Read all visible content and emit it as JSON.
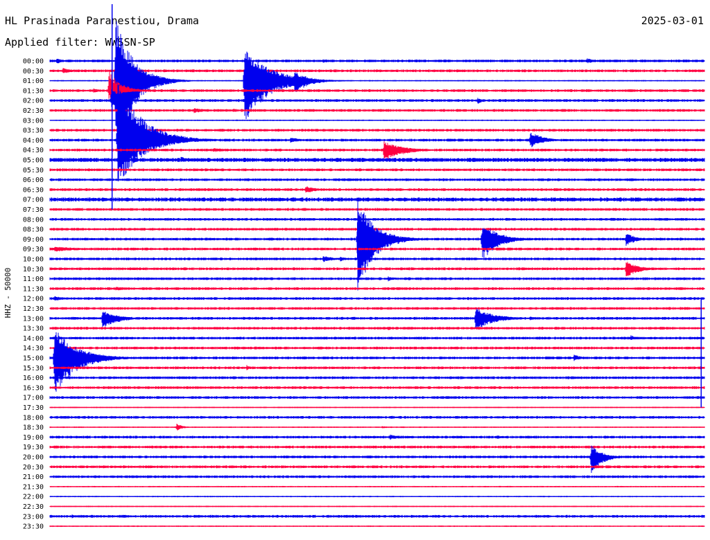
{
  "header": {
    "station": "HL Prasinada Paranestiou, Drama",
    "date": "2025-03-01",
    "filter": "Applied filter: WWSSN-SP"
  },
  "chart_data": {
    "type": "line",
    "ylabel": "HHZ - 50000",
    "row_labels": [
      "00:00",
      "00:30",
      "01:00",
      "01:30",
      "02:00",
      "02:30",
      "03:00",
      "03:30",
      "04:00",
      "04:30",
      "05:00",
      "05:30",
      "06:00",
      "06:30",
      "07:00",
      "07:30",
      "08:00",
      "08:30",
      "09:00",
      "09:30",
      "10:00",
      "10:30",
      "11:00",
      "11:30",
      "12:00",
      "12:30",
      "13:00",
      "13:30",
      "14:00",
      "14:30",
      "15:00",
      "15:30",
      "16:00",
      "16:30",
      "17:00",
      "17:30",
      "18:00",
      "18:30",
      "19:00",
      "19:30",
      "20:00",
      "20:30",
      "21:00",
      "21:30",
      "22:00",
      "22:30",
      "23:00",
      "23:30"
    ],
    "x_range_minutes": [
      0,
      30
    ],
    "trace_colors": [
      "#0000ee",
      "#ff0040"
    ],
    "noise_levels": [
      2,
      2,
      1,
      2,
      2,
      2,
      1,
      2,
      2,
      2,
      3,
      2,
      2,
      2,
      3,
      2,
      2,
      2,
      2,
      2,
      2,
      2,
      2,
      2,
      2,
      2,
      2,
      2,
      2,
      2,
      2,
      2,
      2,
      2,
      2,
      1,
      2,
      1,
      2,
      2,
      2,
      2,
      2,
      1,
      1,
      1,
      2,
      1
    ],
    "events": [
      {
        "row": 0,
        "minute": 0.3,
        "up": 5,
        "down": 5,
        "coda": 0.5
      },
      {
        "row": 0,
        "minute": 12.5,
        "up": 3,
        "down": 3,
        "coda": 0.6
      },
      {
        "row": 0,
        "minute": 24.6,
        "up": 4,
        "down": 4,
        "coda": 0.7
      },
      {
        "row": 1,
        "minute": 0.6,
        "up": 4,
        "down": 4,
        "coda": 1.0
      },
      {
        "row": 1,
        "minute": 15.0,
        "up": 2,
        "down": 2,
        "coda": 2.5
      },
      {
        "row": 1,
        "minute": 26.8,
        "up": 2,
        "down": 2,
        "coda": 0.8
      },
      {
        "row": 2,
        "minute": 3.0,
        "up": 95,
        "down": 120,
        "coda": 1.4
      },
      {
        "row": 2,
        "minute": 8.9,
        "up": 55,
        "down": 65,
        "coda": 2.0
      },
      {
        "row": 2,
        "minute": 11.2,
        "up": 14,
        "down": 20,
        "coda": 1.2
      },
      {
        "row": 3,
        "minute": 2.0,
        "up": 4,
        "down": 4,
        "coda": 0.5
      },
      {
        "row": 3,
        "minute": 2.7,
        "up": 30,
        "down": 12,
        "coda": 1.0
      },
      {
        "row": 4,
        "minute": 2.8,
        "up": 20,
        "down": 12,
        "coda": 0.9
      },
      {
        "row": 4,
        "minute": 19.6,
        "up": 4,
        "down": 6,
        "coda": 0.4
      },
      {
        "row": 5,
        "minute": 6.6,
        "up": 4,
        "down": 4,
        "coda": 1.0
      },
      {
        "row": 5,
        "minute": 8.4,
        "up": 3,
        "down": 3,
        "coda": 0.4
      },
      {
        "row": 8,
        "minute": 3.1,
        "up": 90,
        "down": 70,
        "coda": 2.0
      },
      {
        "row": 8,
        "minute": 11.0,
        "up": 5,
        "down": 4,
        "coda": 0.8
      },
      {
        "row": 8,
        "minute": 22.0,
        "up": 14,
        "down": 12,
        "coda": 1.0
      },
      {
        "row": 9,
        "minute": 7.5,
        "up": 3,
        "down": 3,
        "coda": 1.5
      },
      {
        "row": 9,
        "minute": 15.3,
        "up": 13,
        "down": 18,
        "coda": 1.5
      },
      {
        "row": 10,
        "minute": 6.0,
        "up": 5,
        "down": 3,
        "coda": 0.7
      },
      {
        "row": 12,
        "minute": 22.8,
        "up": 3,
        "down": 3,
        "coda": 0.3
      },
      {
        "row": 13,
        "minute": 11.7,
        "up": 6,
        "down": 6,
        "coda": 0.9
      },
      {
        "row": 16,
        "minute": 14.8,
        "up": 3,
        "down": 3,
        "coda": 0.7
      },
      {
        "row": 17,
        "minute": 22.2,
        "up": 2,
        "down": 2,
        "coda": 1.3
      },
      {
        "row": 18,
        "minute": 14.1,
        "up": 58,
        "down": 78,
        "coda": 1.4
      },
      {
        "row": 18,
        "minute": 19.8,
        "up": 25,
        "down": 33,
        "coda": 1.3
      },
      {
        "row": 18,
        "minute": 20.6,
        "up": 9,
        "down": 9,
        "coda": 0.7
      },
      {
        "row": 18,
        "minute": 26.4,
        "up": 10,
        "down": 11,
        "coda": 0.8
      },
      {
        "row": 19,
        "minute": 0.2,
        "up": 4,
        "down": 4,
        "coda": 2.2
      },
      {
        "row": 20,
        "minute": 12.5,
        "up": 5,
        "down": 5,
        "coda": 1.0
      },
      {
        "row": 20,
        "minute": 13.3,
        "up": 4,
        "down": 4,
        "coda": 0.5
      },
      {
        "row": 21,
        "minute": 26.4,
        "up": 12,
        "down": 14,
        "coda": 1.0
      },
      {
        "row": 22,
        "minute": 15.5,
        "up": 4,
        "down": 4,
        "coda": 0.6
      },
      {
        "row": 23,
        "minute": 3.0,
        "up": 3,
        "down": 3,
        "coda": 1.5
      },
      {
        "row": 24,
        "minute": 0.2,
        "up": 4,
        "down": 4,
        "coda": 0.8
      },
      {
        "row": 25,
        "minute": 11.8,
        "up": 3,
        "down": 3,
        "coda": 0.3
      },
      {
        "row": 26,
        "minute": 2.4,
        "up": 12,
        "down": 18,
        "coda": 1.2
      },
      {
        "row": 26,
        "minute": 19.5,
        "up": 16,
        "down": 18,
        "coda": 1.5
      },
      {
        "row": 26,
        "minute": 22.0,
        "up": 3,
        "down": 3,
        "coda": 0.6
      },
      {
        "row": 27,
        "minute": 15.5,
        "up": 3,
        "down": 3,
        "coda": 0.5
      },
      {
        "row": 27,
        "minute": 20.2,
        "up": 3,
        "down": 3,
        "coda": 0.4
      },
      {
        "row": 28,
        "minute": 26.6,
        "up": 5,
        "down": 4,
        "coda": 0.5
      },
      {
        "row": 30,
        "minute": 0.2,
        "up": 45,
        "down": 55,
        "coda": 1.8
      },
      {
        "row": 30,
        "minute": 24.0,
        "up": 6,
        "down": 5,
        "coda": 0.6
      },
      {
        "row": 31,
        "minute": 9.0,
        "up": 5,
        "down": 4,
        "coda": 0.3
      },
      {
        "row": 37,
        "minute": 5.8,
        "up": 6,
        "down": 6,
        "coda": 0.5
      },
      {
        "row": 37,
        "minute": 15.2,
        "up": 2,
        "down": 2,
        "coda": 0.6
      },
      {
        "row": 38,
        "minute": 15.6,
        "up": 4,
        "down": 4,
        "coda": 0.8
      },
      {
        "row": 38,
        "minute": 20.5,
        "up": 3,
        "down": 3,
        "coda": 0.4
      },
      {
        "row": 40,
        "minute": 24.8,
        "up": 18,
        "down": 28,
        "coda": 0.9
      },
      {
        "row": 42,
        "minute": 19.9,
        "up": 2,
        "down": 2,
        "coda": 0.4
      },
      {
        "row": 46,
        "minute": 1.0,
        "up": 3,
        "down": 3,
        "coda": 0.6
      }
    ],
    "clipped_spikes": [
      {
        "row": 4,
        "minute": 2.85,
        "from_row": -6.0,
        "to_row": 15.0
      },
      {
        "row": 18,
        "minute": 14.1,
        "from_row": 16.3,
        "to_row": 20.0
      },
      {
        "row": 24,
        "minute": 29.85,
        "from_row": 24.0,
        "to_row": 35.0
      }
    ]
  }
}
